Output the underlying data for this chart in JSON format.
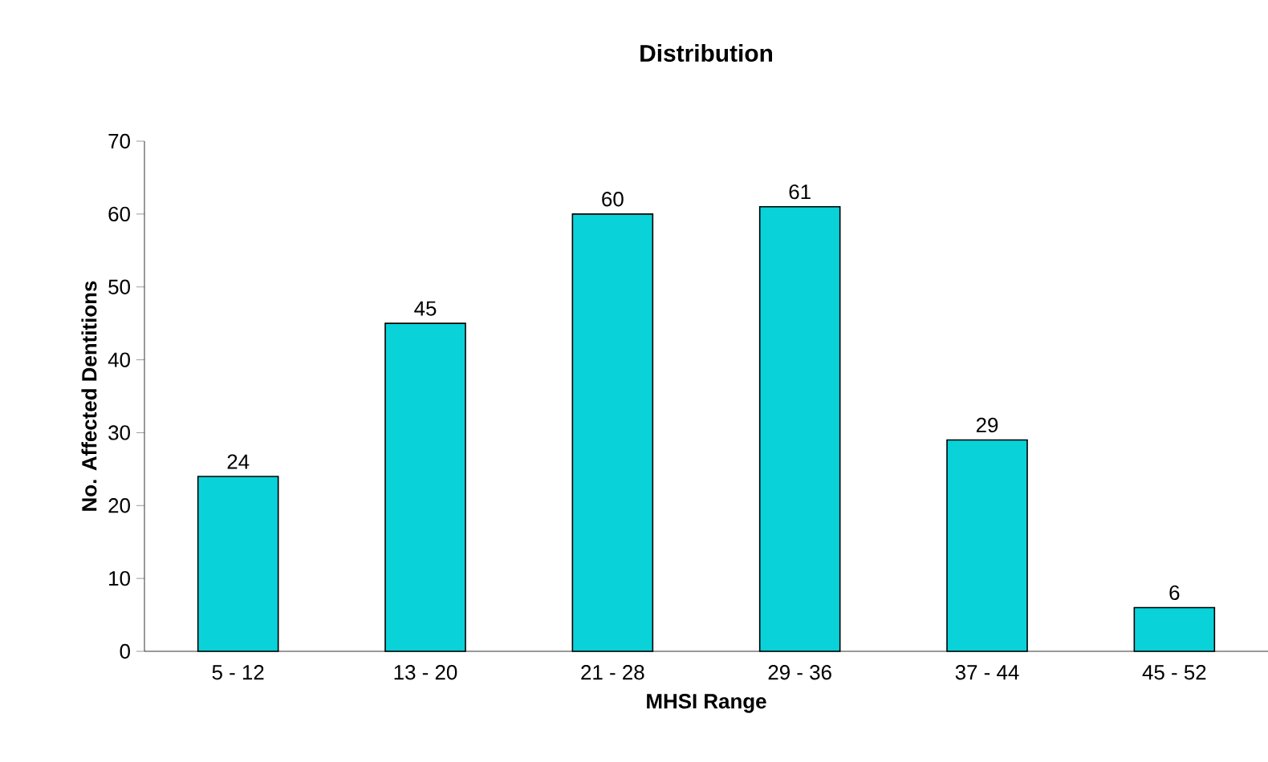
{
  "chart_data": {
    "type": "bar",
    "title": "Distribution",
    "xlabel": "MHSI Range",
    "ylabel": "No. Affected Dentitions",
    "categories": [
      "5 - 12",
      "13 - 20",
      "21 - 28",
      "29 - 36",
      "37 - 44",
      "45 - 52"
    ],
    "values": [
      24,
      45,
      60,
      61,
      29,
      6
    ],
    "color": "#0ad2d9",
    "ylim": [
      0,
      70
    ],
    "yticks": [
      0,
      10,
      20,
      30,
      40,
      50,
      60,
      70
    ],
    "grid": false,
    "data_labels": true
  }
}
